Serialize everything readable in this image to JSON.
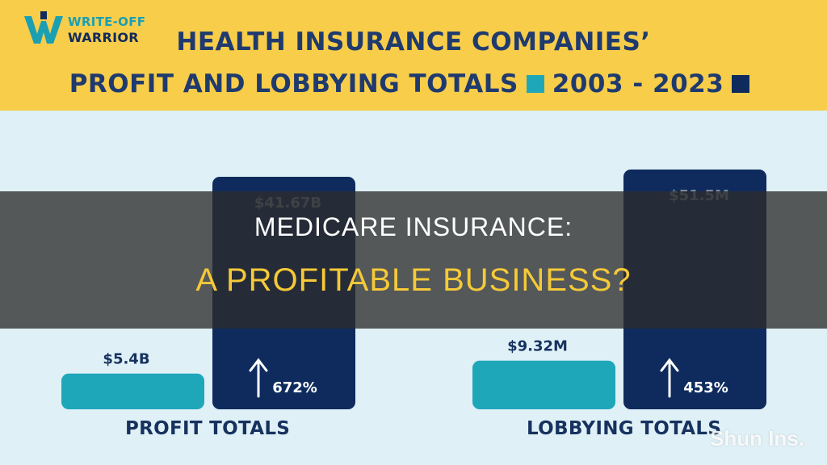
{
  "brand": {
    "logo_line1": "WRITE-OFF",
    "logo_line2": "WARRIOR"
  },
  "title": {
    "line1": "HEALTH INSURANCE COMPANIES’",
    "line2_text": "PROFIT AND LOBBYING TOTALS",
    "years": "2003 - 2023",
    "colors": {
      "start_year": "#1ea7b9",
      "end_year": "#0f2b5e",
      "header_bg": "#f7cd4a"
    }
  },
  "chart_data": [
    {
      "type": "bar",
      "title": "PROFIT TOTALS",
      "categories": [
        "2003",
        "2023"
      ],
      "values": [
        5.4,
        41.67
      ],
      "value_labels": [
        "$5.4B",
        "$41.67B"
      ],
      "unit": "B",
      "change_label": "672%",
      "colors": [
        "#1ea7b9",
        "#0f2b5e"
      ]
    },
    {
      "type": "bar",
      "title": "LOBBYING TOTALS",
      "categories": [
        "2003",
        "2023"
      ],
      "values": [
        9.32,
        51.5
      ],
      "value_labels": [
        "$9.32M",
        "$51.5M"
      ],
      "unit": "M",
      "change_label": "453%",
      "colors": [
        "#1ea7b9",
        "#0f2b5e"
      ]
    }
  ],
  "overlay": {
    "line1": "MEDICARE INSURANCE:",
    "line2": "A PROFITABLE BUSINESS?"
  },
  "watermark": "Shun Ins."
}
